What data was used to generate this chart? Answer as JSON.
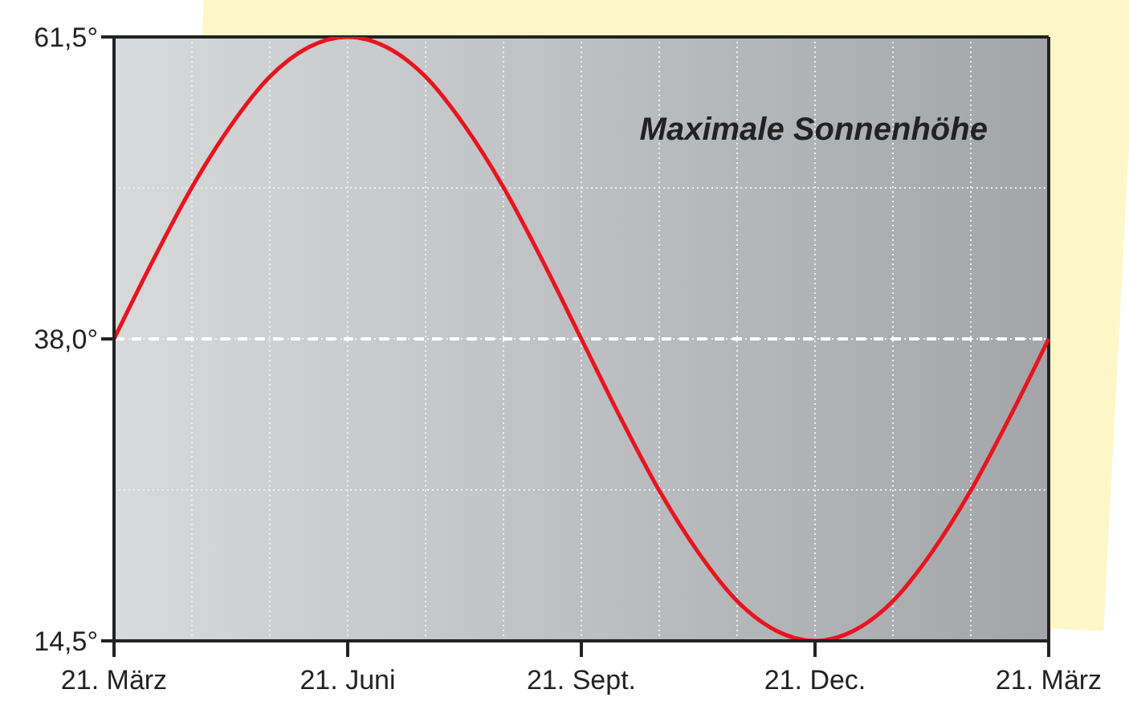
{
  "chart_data": {
    "type": "line",
    "annotations": [
      "Maximale Sonnenhöhe"
    ],
    "categories": [
      "21. März",
      null,
      null,
      null,
      null,
      null,
      "21. Juni",
      null,
      null,
      null,
      null,
      null,
      "21. Sept.",
      null,
      null,
      null,
      null,
      null,
      "21. Dec.",
      null,
      null,
      null,
      null,
      null,
      "21. März"
    ],
    "ylim": [
      14.5,
      61.5
    ],
    "yticks": [
      {
        "value": 14.5,
        "label": "14,5°"
      },
      {
        "value": 26.25,
        "label": null
      },
      {
        "value": 38,
        "label": "38,0°"
      },
      {
        "value": 49.75,
        "label": null
      },
      {
        "value": 61.5,
        "label": "61,5°"
      }
    ],
    "grid": true,
    "line_style": "solid",
    "marker": "none",
    "ref_lines": [
      {
        "axis": "y",
        "value": 38,
        "label": null,
        "color": "#ffffff",
        "line_style": "dashed"
      }
    ],
    "series": [
      {
        "color": "#e8141e",
        "values": [
          38,
          44.1,
          49.8,
          54.6,
          58.4,
          60.7,
          61.5,
          60.7,
          58.4,
          54.6,
          49.8,
          44.1,
          38,
          31.9,
          26.2,
          21.4,
          17.6,
          15.3,
          14.5,
          15.3,
          17.6,
          21.4,
          26.2,
          31.9,
          38
        ]
      }
    ]
  }
}
